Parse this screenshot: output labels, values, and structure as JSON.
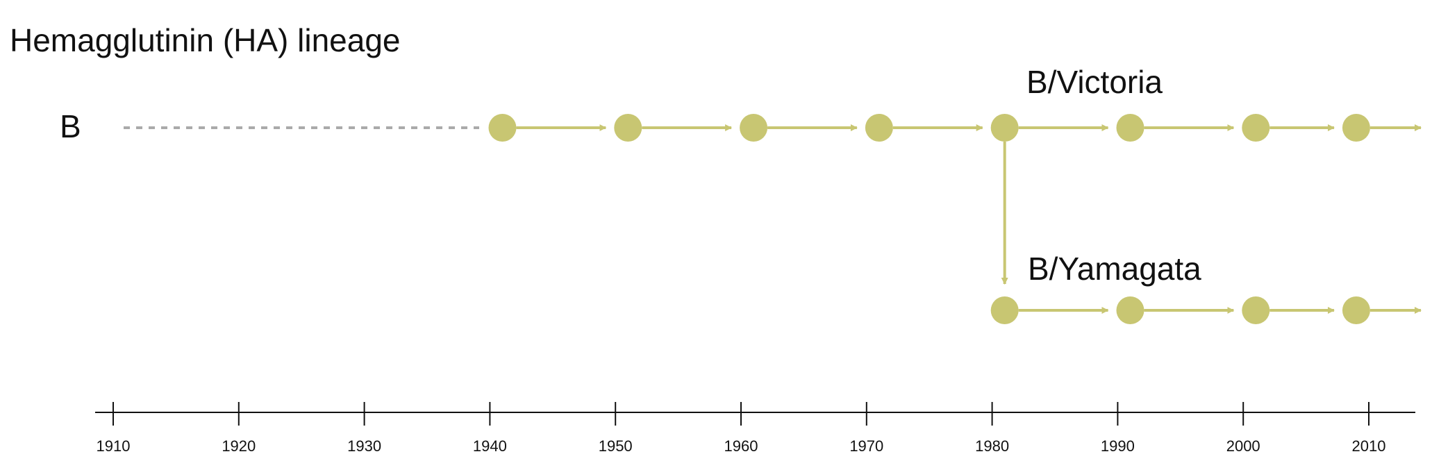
{
  "title": "Hemagglutinin (HA) lineage",
  "row_label": "B",
  "colors": {
    "node": "#c8c672",
    "arrow": "#c8c672",
    "dotted": "#aaaaaa",
    "axis": "#111111"
  },
  "axis": {
    "ticks": [
      "1910",
      "1920",
      "1930",
      "1940",
      "1950",
      "1960",
      "1970",
      "1980",
      "1990",
      "2000",
      "2010"
    ]
  },
  "lineages": [
    {
      "label": "B/Victoria",
      "node_years": [
        1941,
        1951,
        1961,
        1971,
        1981,
        1991,
        2001,
        2009
      ]
    },
    {
      "label": "B/Yamagata",
      "node_years": [
        1981,
        1991,
        2001,
        2009
      ]
    }
  ],
  "ancestral_segment": {
    "from_year": 1911,
    "to_year": 1939,
    "style": "dotted"
  },
  "split": {
    "year": 1981,
    "from": "B/Victoria",
    "to": "B/Yamagata"
  }
}
